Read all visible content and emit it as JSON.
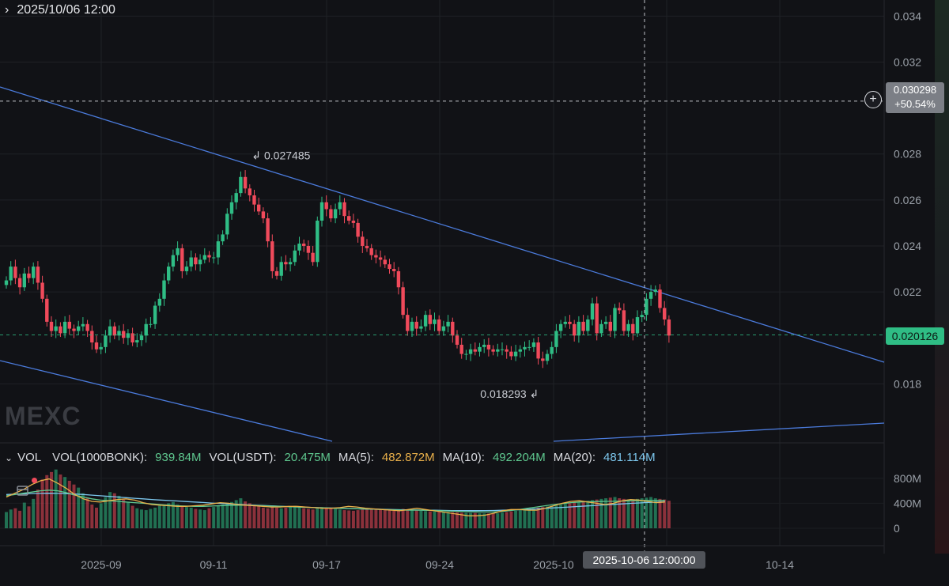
{
  "header": {
    "datetime": "2025/10/06 12:00"
  },
  "watermark": "MEXC",
  "price_tags": {
    "last_price": "0.020126",
    "cross_price": "0.030298",
    "cross_change": "+50.54%",
    "time_label": "2025-10-06 12:00:00"
  },
  "annotations": {
    "high": "0.027485",
    "low": "0.018293"
  },
  "vol_legend": {
    "indicator": "VOL",
    "base_label": "VOL(1000BONK):",
    "base_value": "939.84M",
    "quote_label": "VOL(USDT):",
    "quote_value": "20.475M",
    "ma5_label": "MA(5):",
    "ma5_value": "482.872M",
    "ma10_label": "MA(10):",
    "ma10_value": "492.204M",
    "ma20_label": "MA(20):",
    "ma20_value": "481.114M"
  },
  "colors": {
    "up": "#2fbd85",
    "down": "#f04a5b",
    "trend": "#4b7bdc",
    "ma5": "#e9b04a",
    "ma10": "#5fc88f",
    "ma20": "#7cc6ec"
  },
  "icons": [
    "chevron-right-icon",
    "add-circle-icon",
    "chart-settings-icon",
    "chevron-down-icon"
  ],
  "chart_data": {
    "type": "candlestick",
    "price_axis": {
      "ticks": [
        "0.034",
        "0.032",
        "0.028",
        "0.026",
        "0.024",
        "0.022",
        "0.018"
      ],
      "range": [
        0.0155,
        0.0347
      ]
    },
    "volume_axis": {
      "ticks": [
        "800M",
        "400M",
        "0"
      ],
      "range": [
        0,
        1050
      ]
    },
    "time_axis": {
      "labels": [
        "2025-09",
        "09-11",
        "09-17",
        "09-24",
        "2025-10",
        "10-14"
      ]
    },
    "price_series": [
      0.0225,
      0.0231,
      0.0226,
      0.0222,
      0.0228,
      0.0226,
      0.0231,
      0.0224,
      0.0217,
      0.0207,
      0.0203,
      0.0205,
      0.0202,
      0.0207,
      0.0204,
      0.0203,
      0.0205,
      0.0206,
      0.0203,
      0.0198,
      0.0195,
      0.0196,
      0.0201,
      0.0205,
      0.0201,
      0.0203,
      0.02,
      0.0202,
      0.0198,
      0.0199,
      0.0201,
      0.0206,
      0.0206,
      0.0214,
      0.0217,
      0.0225,
      0.0231,
      0.0236,
      0.0239,
      0.0229,
      0.0231,
      0.0235,
      0.0232,
      0.0234,
      0.0236,
      0.0235,
      0.0235,
      0.0242,
      0.0245,
      0.0254,
      0.0259,
      0.0263,
      0.027,
      0.0265,
      0.0262,
      0.0258,
      0.0255,
      0.0252,
      0.0242,
      0.0229,
      0.0227,
      0.0233,
      0.0232,
      0.0233,
      0.0238,
      0.0241,
      0.024,
      0.0237,
      0.0233,
      0.0251,
      0.0259,
      0.0256,
      0.0252,
      0.0256,
      0.0259,
      0.0253,
      0.0251,
      0.025,
      0.0244,
      0.024,
      0.0239,
      0.0236,
      0.0235,
      0.0234,
      0.0232,
      0.023,
      0.0229,
      0.0222,
      0.021,
      0.0203,
      0.0207,
      0.0204,
      0.0205,
      0.021,
      0.0206,
      0.0208,
      0.0203,
      0.0205,
      0.0207,
      0.0201,
      0.0197,
      0.0193,
      0.0193,
      0.0195,
      0.0194,
      0.0196,
      0.0197,
      0.0195,
      0.0194,
      0.0195,
      0.0195,
      0.0194,
      0.0192,
      0.0194,
      0.0195,
      0.0196,
      0.0196,
      0.0198,
      0.0191,
      0.019,
      0.0193,
      0.0196,
      0.0203,
      0.0206,
      0.0207,
      0.0206,
      0.0201,
      0.0207,
      0.0203,
      0.0208,
      0.0215,
      0.0202,
      0.0206,
      0.0207,
      0.0203,
      0.0213,
      0.0212,
      0.0203,
      0.0206,
      0.0202,
      0.0209,
      0.021,
      0.0217,
      0.022,
      0.0221,
      0.0213,
      0.0208,
      0.0201
    ],
    "volume_series": [
      260,
      300,
      320,
      280,
      410,
      350,
      470,
      620,
      780,
      850,
      900,
      940,
      860,
      820,
      760,
      700,
      650,
      560,
      480,
      380,
      330,
      400,
      500,
      580,
      560,
      520,
      460,
      410,
      360,
      320,
      300,
      290,
      310,
      330,
      360,
      380,
      400,
      420,
      380,
      360,
      340,
      330,
      310,
      300,
      290,
      320,
      340,
      360,
      380,
      400,
      420,
      450,
      480,
      430,
      400,
      380,
      360,
      330,
      320,
      340,
      330,
      320,
      330,
      350,
      360,
      340,
      320,
      310,
      300,
      320,
      340,
      330,
      320,
      310,
      300,
      290,
      285,
      280,
      290,
      300,
      310,
      305,
      300,
      295,
      290,
      285,
      280,
      290,
      310,
      300,
      290,
      285,
      280,
      275,
      270,
      268,
      265,
      262,
      260,
      258,
      256,
      250,
      248,
      246,
      244,
      240,
      238,
      236,
      235,
      240,
      250,
      260,
      270,
      280,
      290,
      300,
      310,
      320,
      330,
      340,
      350,
      360,
      370,
      380,
      390,
      400,
      410,
      420,
      430,
      440,
      450,
      460,
      470,
      480,
      490,
      500,
      480,
      470,
      460,
      450,
      470,
      480,
      490,
      500,
      480,
      470,
      460,
      440
    ],
    "ma5": [
      500,
      560,
      620,
      700,
      760,
      790,
      720,
      640,
      540,
      470,
      430,
      420,
      440,
      460,
      470,
      450,
      410,
      380,
      370,
      360,
      350,
      350,
      360,
      370,
      390,
      410,
      400,
      380,
      370,
      360,
      350,
      340,
      340,
      350,
      350,
      340,
      330,
      320,
      320,
      330,
      350,
      340,
      320,
      310,
      300,
      290,
      280,
      300,
      320,
      300,
      280,
      260,
      240,
      220,
      200,
      200,
      210,
      240,
      280,
      300,
      300,
      290,
      290,
      320,
      360,
      400,
      430,
      440,
      420,
      400,
      380,
      400,
      440,
      460,
      450,
      430,
      410,
      420
    ],
    "ma10": [
      520,
      540,
      560,
      580,
      600,
      610,
      600,
      570,
      530,
      500,
      470,
      450,
      440,
      430,
      420,
      410,
      400,
      390,
      380,
      370,
      360,
      355,
      350,
      350,
      355,
      360,
      365,
      370,
      368,
      365,
      360,
      355,
      350,
      345,
      340,
      335,
      330,
      326,
      322,
      318,
      315,
      312,
      308,
      305,
      300,
      296,
      292,
      290,
      290,
      288,
      285,
      280,
      275,
      270,
      266,
      262,
      260,
      262,
      270,
      285,
      300,
      320,
      340,
      360,
      380,
      395,
      410,
      420,
      425,
      428,
      430,
      432,
      435,
      440,
      442,
      444,
      445,
      448
    ],
    "ma20": [
      540,
      545,
      550,
      555,
      558,
      560,
      558,
      554,
      548,
      540,
      530,
      520,
      510,
      500,
      490,
      480,
      470,
      460,
      452,
      444,
      436,
      428,
      420,
      412,
      404,
      397,
      390,
      383,
      376,
      370,
      364,
      358,
      352,
      347,
      342,
      337,
      332,
      328,
      324,
      320,
      316,
      312,
      309,
      306,
      303,
      300,
      297,
      294,
      292,
      290,
      288,
      286,
      284,
      283,
      282,
      282,
      283,
      285,
      288,
      292,
      297,
      303,
      310,
      318,
      326,
      334,
      342,
      350,
      358,
      366,
      374,
      382,
      390,
      398,
      405,
      412,
      418,
      425
    ]
  }
}
